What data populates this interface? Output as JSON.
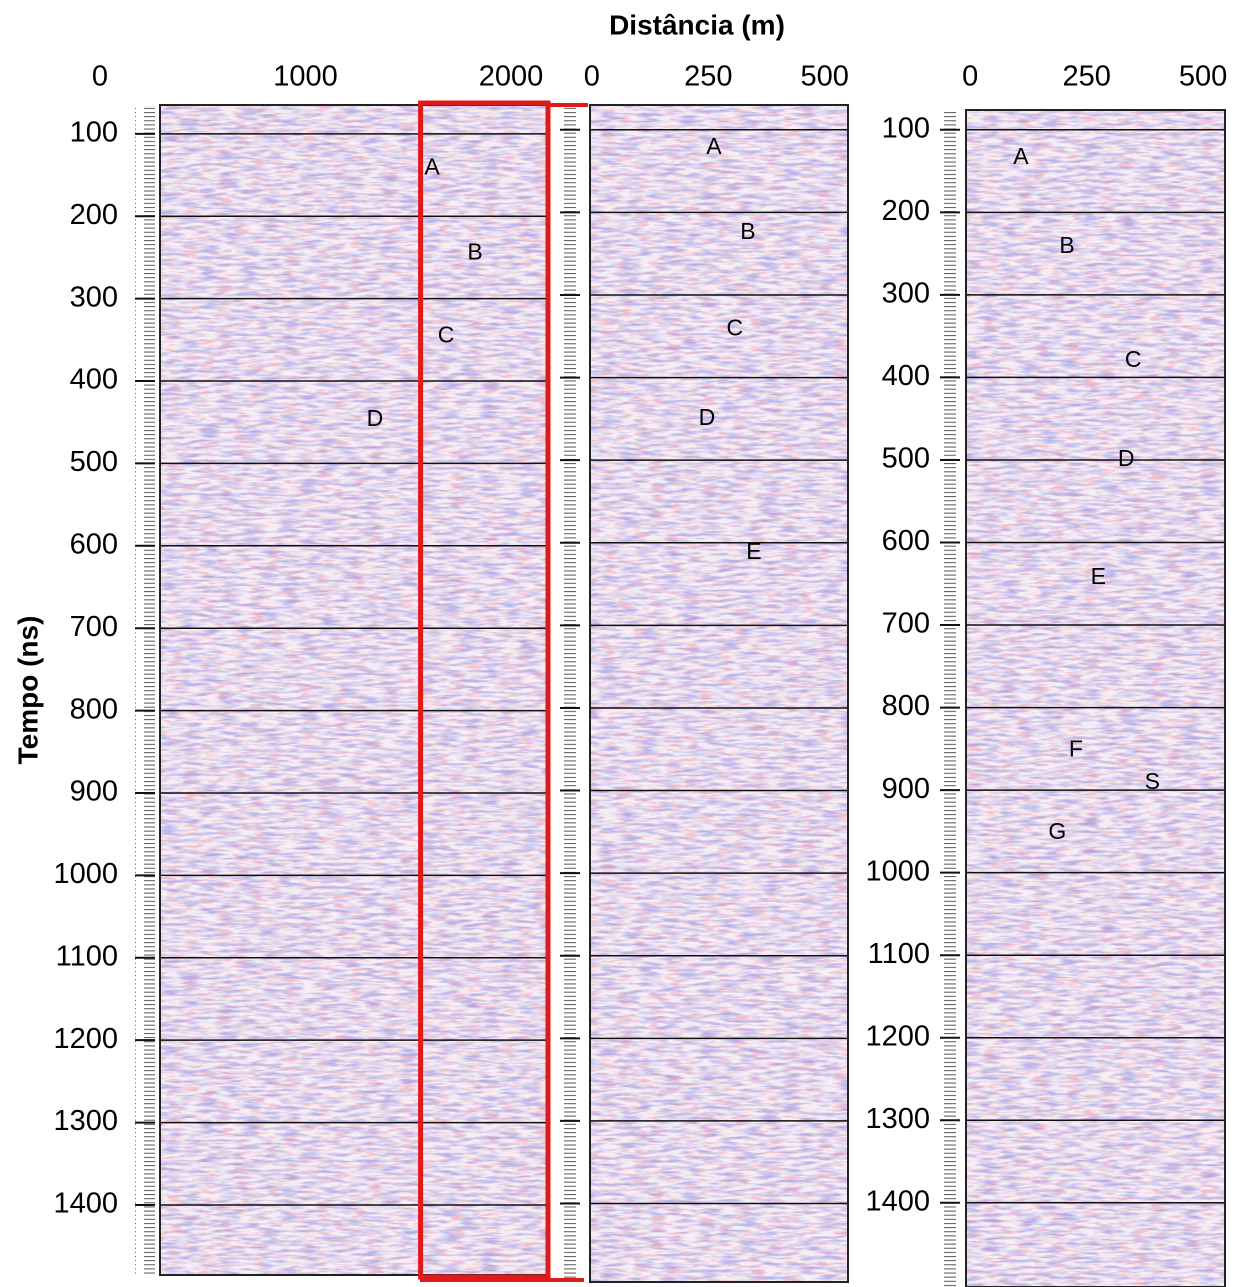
{
  "figure": {
    "xlabel": "Distância (m)",
    "ylabel": "Tempo (ns)"
  },
  "chart_data": [
    {
      "type": "radargram",
      "xlim": [
        292,
        2180
      ],
      "xticks": [
        0,
        1000,
        2000
      ],
      "ylim": [
        65,
        1485
      ],
      "yticks": [
        100,
        200,
        300,
        400,
        500,
        600,
        700,
        800,
        900,
        1000,
        1100,
        1200,
        1300,
        1400
      ],
      "show_ytick_labels": true,
      "grid": true,
      "highlight_x": [
        1560,
        2180
      ],
      "highlight_color": "#e0191a",
      "annotations": [
        {
          "text": "A",
          "x": 1616,
          "y": 142
        },
        {
          "text": "B",
          "x": 1825,
          "y": 245
        },
        {
          "text": "C",
          "x": 1684,
          "y": 346
        },
        {
          "text": "D",
          "x": 1338,
          "y": 447
        }
      ]
    },
    {
      "type": "radargram",
      "xlim": [
        -4,
        550
      ],
      "xticks": [
        0,
        250,
        500
      ],
      "ylim": [
        70,
        1495
      ],
      "yticks": [
        100,
        200,
        300,
        400,
        500,
        600,
        700,
        800,
        900,
        1000,
        1100,
        1200,
        1300,
        1400
      ],
      "show_ytick_labels": false,
      "grid": true,
      "annotations": [
        {
          "text": "A",
          "x": 262,
          "y": 122
        },
        {
          "text": "B",
          "x": 335,
          "y": 225
        },
        {
          "text": "C",
          "x": 307,
          "y": 342
        },
        {
          "text": "D",
          "x": 247,
          "y": 450
        },
        {
          "text": "E",
          "x": 348,
          "y": 612
        }
      ]
    },
    {
      "type": "radargram",
      "xlim": [
        -9,
        547
      ],
      "xticks": [
        0,
        250,
        500
      ],
      "ylim": [
        76,
        1502
      ],
      "yticks": [
        100,
        200,
        300,
        400,
        500,
        600,
        700,
        800,
        900,
        1000,
        1100,
        1200,
        1300,
        1400
      ],
      "show_ytick_labels": true,
      "grid": true,
      "annotations": [
        {
          "text": "A",
          "x": 109,
          "y": 134
        },
        {
          "text": "B",
          "x": 208,
          "y": 242
        },
        {
          "text": "C",
          "x": 350,
          "y": 380
        },
        {
          "text": "D",
          "x": 335,
          "y": 500
        },
        {
          "text": "E",
          "x": 275,
          "y": 643
        },
        {
          "text": "F",
          "x": 227,
          "y": 852
        },
        {
          "text": "S",
          "x": 391,
          "y": 891
        },
        {
          "text": "G",
          "x": 187,
          "y": 952
        }
      ]
    }
  ]
}
